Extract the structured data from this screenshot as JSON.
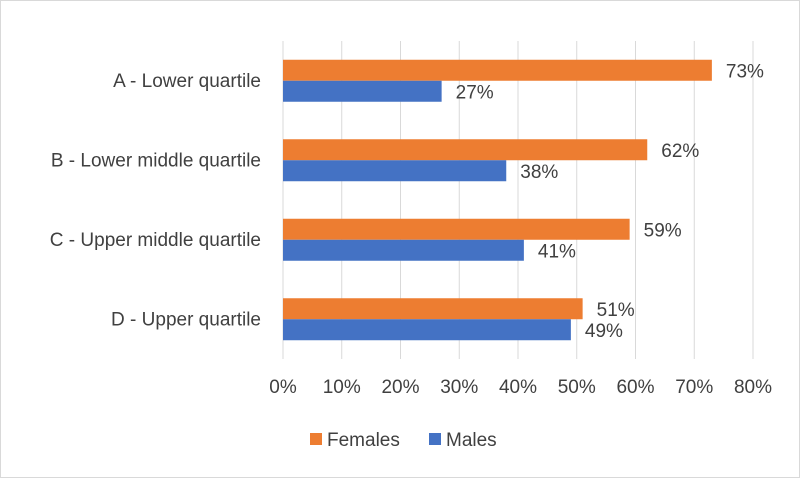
{
  "chart_data": {
    "type": "bar",
    "orientation": "horizontal",
    "categories": [
      "A - Lower quartile",
      "B - Lower middle quartile",
      "C - Upper middle quartile",
      "D - Upper quartile"
    ],
    "series": [
      {
        "name": "Females",
        "color": "#ED7D31",
        "values": [
          73,
          62,
          59,
          51
        ],
        "labels": [
          "73%",
          "62%",
          "59%",
          "51%"
        ]
      },
      {
        "name": "Males",
        "color": "#4472C4",
        "values": [
          27,
          38,
          41,
          49
        ],
        "labels": [
          "27%",
          "38%",
          "41%",
          "49%"
        ]
      }
    ],
    "x_ticks": [
      "0%",
      "10%",
      "20%",
      "30%",
      "40%",
      "50%",
      "60%",
      "70%",
      "80%"
    ],
    "xlim": [
      0,
      80
    ],
    "grid": "vertical",
    "legend_position": "bottom",
    "title": "",
    "xlabel": "",
    "ylabel": ""
  }
}
